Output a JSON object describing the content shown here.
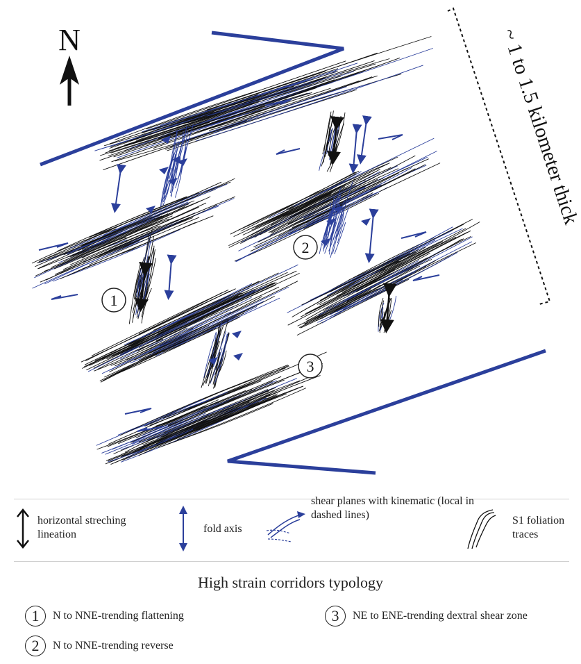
{
  "north_label": "N",
  "thickness_label": "~ 1 to 1.5 kilometer thick",
  "zone_labels": [
    "1",
    "2",
    "3"
  ],
  "colors": {
    "blue": "#2b3f9b",
    "black": "#111111"
  },
  "legend": {
    "stretching": "horizontal streching lineation",
    "fold": "fold axis",
    "shear": "shear planes with kinematic (local in dashed lines)",
    "foliation": "S1 foliation traces"
  },
  "typology": {
    "title": "High strain corridors typology",
    "items": [
      {
        "num": "1",
        "text": "N to NNE-trending flattening"
      },
      {
        "num": "3",
        "text": "NE to ENE-trending dextral shear zone"
      },
      {
        "num": "2",
        "text": "N to NNE-trending reverse"
      }
    ]
  }
}
